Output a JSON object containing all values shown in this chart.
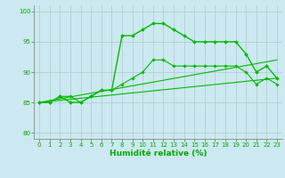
{
  "series": [
    {
      "x": [
        0,
        1,
        2,
        3,
        4,
        5,
        6,
        7,
        8,
        9,
        10,
        11,
        12,
        13,
        14,
        15,
        16,
        17,
        18,
        19,
        20,
        21,
        22,
        23
      ],
      "y": [
        85,
        85,
        86,
        85,
        85,
        86,
        87,
        87,
        96,
        96,
        97,
        98,
        98,
        97,
        96,
        95,
        95,
        95,
        95,
        95,
        93,
        90,
        91,
        89
      ],
      "color": "#00bb00",
      "marker": "D",
      "markersize": 2.0,
      "linewidth": 1.0
    },
    {
      "x": [
        0,
        1,
        2,
        3,
        4,
        5,
        6,
        7,
        8,
        9,
        10,
        11,
        12,
        13,
        14,
        15,
        16,
        17,
        18,
        19,
        20,
        21,
        22,
        23
      ],
      "y": [
        85,
        85,
        86,
        86,
        85,
        86,
        87,
        87,
        88,
        89,
        90,
        92,
        92,
        91,
        91,
        91,
        91,
        91,
        91,
        91,
        90,
        88,
        89,
        88
      ],
      "color": "#00bb00",
      "marker": "D",
      "markersize": 1.8,
      "linewidth": 0.8
    },
    {
      "x": [
        0,
        23
      ],
      "y": [
        85,
        89
      ],
      "color": "#00bb00",
      "marker": null,
      "linewidth": 0.8
    },
    {
      "x": [
        0,
        23
      ],
      "y": [
        85,
        92
      ],
      "color": "#00bb00",
      "marker": null,
      "linewidth": 0.8
    }
  ],
  "background_color": "#cce8f0",
  "grid_color": "#aacccc",
  "xlabel": "Humidité relative (%)",
  "xlabel_color": "#00aa00",
  "xlabel_fontsize": 6.5,
  "xtick_labels": [
    "0",
    "1",
    "2",
    "3",
    "4",
    "5",
    "6",
    "7",
    "8",
    "9",
    "10",
    "11",
    "12",
    "13",
    "14",
    "15",
    "16",
    "17",
    "18",
    "19",
    "20",
    "21",
    "22",
    "23"
  ],
  "xlim": [
    -0.5,
    23.5
  ],
  "ylim": [
    79,
    101
  ],
  "yticks": [
    80,
    85,
    90,
    95,
    100
  ],
  "tick_color": "#00aa00",
  "tick_fontsize": 5.0,
  "spine_color": "#888888"
}
